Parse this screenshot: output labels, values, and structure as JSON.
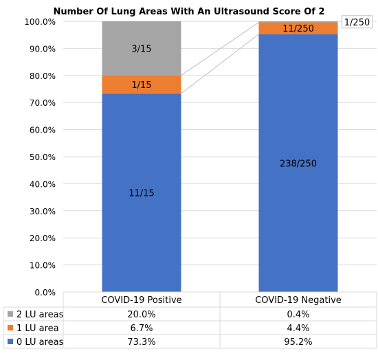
{
  "chart_data": {
    "type": "bar",
    "stacked": true,
    "title": "Number Of Lung Areas With An Ultrasound Score Of 2",
    "categories": [
      "COVID-19 Positive",
      "COVID-19 Negative"
    ],
    "series": [
      {
        "name": "0 LU areas",
        "color": "#4472C4",
        "values": [
          73.3,
          95.2
        ],
        "display": [
          "73.3%",
          "95.2%"
        ],
        "labels": [
          "11/15",
          "238/250"
        ]
      },
      {
        "name": "1 LU area",
        "color": "#ED7D31",
        "values": [
          6.7,
          4.4
        ],
        "display": [
          "6.7%",
          "4.4%"
        ],
        "labels": [
          "1/15",
          "11/250"
        ]
      },
      {
        "name": "2 LU areas",
        "color": "#A5A5A5",
        "values": [
          20.0,
          0.4
        ],
        "display": [
          "20.0%",
          "0.4%"
        ],
        "labels": [
          "3/15",
          "1/250"
        ]
      }
    ],
    "ylim": [
      0,
      100
    ],
    "yticks": [
      "0.0%",
      "10.0%",
      "20.0%",
      "30.0%",
      "40.0%",
      "50.0%",
      "60.0%",
      "70.0%",
      "80.0%",
      "90.0%",
      "100.0%"
    ],
    "grid": true,
    "data_table": true
  }
}
